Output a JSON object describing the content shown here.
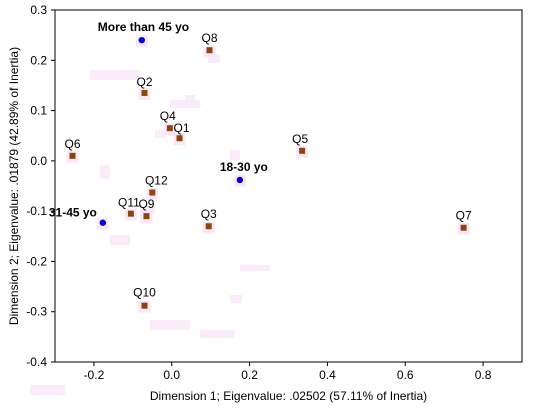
{
  "chart_data": {
    "type": "scatter",
    "xlabel": "Dimension 1; Eigenvalue: .02502 (57.11% of Inertia)",
    "ylabel": "Dimension 2; Eigenvalue: .01879 (42.89% of Inertia)",
    "xlim": [
      -0.3,
      0.9
    ],
    "ylim": [
      -0.4,
      0.3
    ],
    "x_ticks": [
      {
        "value": -0.2,
        "label": "-0.2"
      },
      {
        "value": 0.0,
        "label": "0.0"
      },
      {
        "value": 0.2,
        "label": "0.2"
      },
      {
        "value": 0.4,
        "label": "0.4"
      },
      {
        "value": 0.6,
        "label": "0.6"
      },
      {
        "value": 0.8,
        "label": "0.8"
      }
    ],
    "y_ticks": [
      {
        "value": 0.3,
        "label": "0.3"
      },
      {
        "value": 0.2,
        "label": "0.2"
      },
      {
        "value": 0.1,
        "label": "0.1"
      },
      {
        "value": 0.0,
        "label": "0.0"
      },
      {
        "value": -0.1,
        "label": "-0.1"
      },
      {
        "value": -0.2,
        "label": "-0.2"
      },
      {
        "value": -0.3,
        "label": "-0.3"
      },
      {
        "value": -0.4,
        "label": "-0.4"
      }
    ],
    "grid": false,
    "series": [
      {
        "marker": "square",
        "color": "#8B4513",
        "points": [
          {
            "label": "Q1",
            "x": 0.02,
            "y": 0.045
          },
          {
            "label": "Q2",
            "x": -0.07,
            "y": 0.135
          },
          {
            "label": "Q3",
            "x": 0.095,
            "y": -0.13
          },
          {
            "label": "Q4",
            "x": -0.005,
            "y": 0.065
          },
          {
            "label": "Q5",
            "x": 0.335,
            "y": 0.02
          },
          {
            "label": "Q6",
            "x": -0.255,
            "y": 0.01
          },
          {
            "label": "Q7",
            "x": 0.75,
            "y": -0.133
          },
          {
            "label": "Q8",
            "x": 0.097,
            "y": 0.22
          },
          {
            "label": "Q9",
            "x": -0.065,
            "y": -0.11
          },
          {
            "label": "Q10",
            "x": -0.07,
            "y": -0.288
          },
          {
            "label": "Q11",
            "x": -0.105,
            "y": -0.105
          },
          {
            "label": "Q12",
            "x": -0.05,
            "y": -0.063
          }
        ]
      },
      {
        "marker": "circle",
        "color": "#0000CC",
        "points": [
          {
            "label": "More than 45 yo",
            "x": -0.077,
            "y": 0.24
          },
          {
            "label": "18-30 yo",
            "x": 0.175,
            "y": -0.038
          },
          {
            "label": "31-45 yo",
            "x": -0.177,
            "y": -0.123
          }
        ]
      }
    ]
  }
}
